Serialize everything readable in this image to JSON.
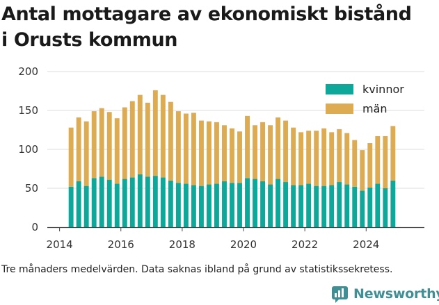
{
  "title_line1": "Antal mottagare av ekonomiskt bistånd",
  "title_line2": "i Orusts kommun",
  "footnote": "Tre månaders medelvärden. Data saknas ibland på grund av statistikssekretess.",
  "brand": "Newsworthy",
  "colors": {
    "kvinnor": "#0ea89b",
    "man": "#dcab52",
    "axis": "#444444",
    "grid": "#dddddd",
    "brand": "#3f8f94"
  },
  "chart_data": {
    "type": "bar",
    "stacked": true,
    "x_dates": [
      2014.375,
      2014.625,
      2014.875,
      2015.125,
      2015.375,
      2015.625,
      2015.875,
      2016.125,
      2016.375,
      2016.625,
      2016.875,
      2017.125,
      2017.375,
      2017.625,
      2017.875,
      2018.125,
      2018.375,
      2018.625,
      2018.875,
      2019.125,
      2019.375,
      2019.625,
      2019.875,
      2020.125,
      2020.375,
      2020.625,
      2020.875,
      2021.125,
      2021.375,
      2021.625,
      2021.875,
      2022.125,
      2022.375,
      2022.625,
      2022.875,
      2023.125,
      2023.375,
      2023.625,
      2023.875,
      2024.125,
      2024.375,
      2024.625,
      2024.875
    ],
    "series": [
      {
        "name": "kvinnor",
        "values": [
          52,
          59,
          53,
          63,
          65,
          61,
          56,
          62,
          64,
          68,
          65,
          66,
          64,
          60,
          57,
          56,
          54,
          53,
          55,
          56,
          59,
          57,
          57,
          63,
          62,
          59,
          55,
          62,
          58,
          54,
          54,
          56,
          53,
          53,
          54,
          58,
          55,
          52,
          47,
          51,
          56,
          50,
          60
        ]
      },
      {
        "name": "män",
        "values": [
          76,
          82,
          83,
          86,
          88,
          87,
          84,
          92,
          98,
          102,
          95,
          110,
          106,
          101,
          92,
          90,
          93,
          84,
          81,
          79,
          72,
          70,
          66,
          80,
          69,
          76,
          76,
          79,
          79,
          74,
          68,
          68,
          71,
          74,
          68,
          68,
          66,
          60,
          52,
          57,
          61,
          67,
          70
        ]
      }
    ],
    "xlim": [
      2013.6,
      2025.9
    ],
    "ylim": [
      0,
      200
    ],
    "y_ticks": [
      0,
      50,
      100,
      150,
      200
    ],
    "x_ticks": [
      2014,
      2016,
      2018,
      2020,
      2022,
      2024
    ],
    "y_tick_labels": [
      "0",
      "50",
      "100",
      "150",
      "200"
    ],
    "x_tick_labels": [
      "2014",
      "2016",
      "2018",
      "2020",
      "2022",
      "2024"
    ],
    "legend": [
      "kvinnor",
      "män"
    ],
    "legend_position": "top-right",
    "grid": "horizontal"
  }
}
